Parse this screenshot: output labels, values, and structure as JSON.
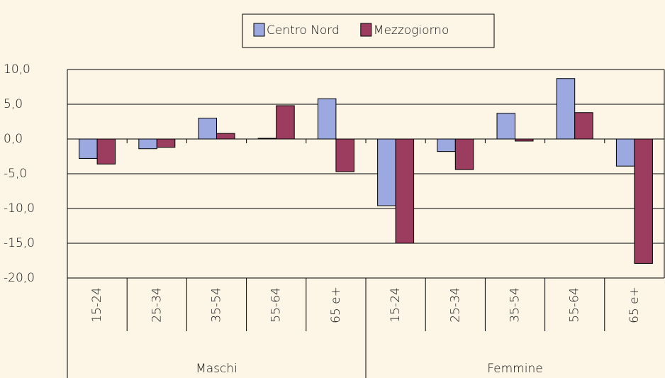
{
  "chart_data": {
    "type": "bar",
    "categories": [
      "15-24",
      "25-34",
      "35-54",
      "55-64",
      "65 e+",
      "15-24",
      "25-34",
      "35-54",
      "55-64",
      "65 e+"
    ],
    "category_groups": [
      "Maschi",
      "Femmine"
    ],
    "series": [
      {
        "name": "Centro Nord",
        "color": "#9ca8e0",
        "values": [
          -2.8,
          -1.4,
          3.0,
          0.1,
          5.8,
          -9.6,
          -1.8,
          3.7,
          8.7,
          -3.9
        ]
      },
      {
        "name": "Mezzogiorno",
        "color": "#9c3d5f",
        "values": [
          -3.6,
          -1.2,
          0.8,
          4.8,
          -4.7,
          -15.0,
          -4.4,
          -0.3,
          3.8,
          -17.9
        ]
      }
    ],
    "ylim": [
      -20,
      10
    ],
    "yticks": [
      {
        "value": 10,
        "label": "10,0"
      },
      {
        "value": 5,
        "label": "5,0"
      },
      {
        "value": 0,
        "label": "0,0"
      },
      {
        "value": -5,
        "label": "-5,0"
      },
      {
        "value": -10,
        "label": "-10,0"
      },
      {
        "value": -15,
        "label": "-15,0"
      },
      {
        "value": -20,
        "label": "-20,0"
      }
    ],
    "grid": true,
    "legend": "top"
  }
}
